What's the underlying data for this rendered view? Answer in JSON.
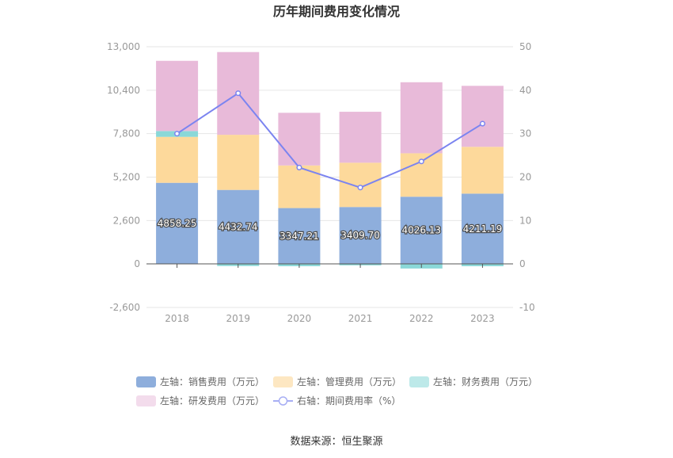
{
  "title": "历年期间费用变化情况",
  "source": "数据来源：恒生聚源",
  "colors": {
    "sales": "#8eaedc",
    "mgmt": "#fdd99b",
    "finance": "#8ad8d8",
    "rd": "#e8bad9",
    "rate": "#7b84f0"
  },
  "legend": [
    {
      "key": "sales",
      "label": "左轴：销售费用（万元）",
      "shape": "rect",
      "color": "#8eaedc"
    },
    {
      "key": "mgmt",
      "label": "左轴：管理费用（万元）",
      "shape": "rect",
      "color": "#fde7c2"
    },
    {
      "key": "finance",
      "label": "左轴：财务费用（万元）",
      "shape": "rect",
      "color": "#bde9e9"
    },
    {
      "key": "rd",
      "label": "左轴：研发费用（万元）",
      "shape": "rect",
      "color": "#f3dcec"
    },
    {
      "key": "rate",
      "label": "右轴：期间费用率（%）",
      "shape": "line",
      "color": "#a7aef4"
    }
  ],
  "chart_data": {
    "type": "bar",
    "stacked": true,
    "categories": [
      "2018",
      "2019",
      "2020",
      "2021",
      "2022",
      "2023"
    ],
    "left_axis": {
      "ylim": [
        -2600,
        13000
      ],
      "ticks": [
        -2600,
        0,
        2600,
        5200,
        7800,
        10400,
        13000
      ],
      "tick_labels": [
        "-2,600",
        "0",
        "2,600",
        "5,200",
        "7,800",
        "10,400",
        "13,000"
      ]
    },
    "right_axis": {
      "ylim": [
        -10,
        50
      ],
      "ticks": [
        -10,
        0,
        10,
        20,
        30,
        40,
        50
      ],
      "tick_labels": [
        "-10",
        "0",
        "10",
        "20",
        "30",
        "40",
        "50"
      ]
    },
    "grid": true,
    "legend_position": "bottom",
    "series": [
      {
        "name": "左轴：销售费用（万元）",
        "key": "sales",
        "axis": "left",
        "values": [
          4858.25,
          4432.74,
          3347.21,
          3409.7,
          4026.13,
          4211.19
        ],
        "data_labels": [
          "4858.25",
          "4432.74",
          "3347.21",
          "3409.70",
          "4026.13",
          "4211.19"
        ]
      },
      {
        "name": "左轴：管理费用（万元）",
        "key": "mgmt",
        "axis": "left",
        "values": [
          2750,
          3300,
          2550,
          2650,
          2600,
          2800
        ]
      },
      {
        "name": "左轴：财务费用（万元）",
        "key": "finance",
        "axis": "left",
        "values": [
          350,
          -120,
          -130,
          -80,
          -270,
          -130
        ]
      },
      {
        "name": "左轴：研发费用（万元）",
        "key": "rd",
        "axis": "left",
        "values": [
          4200,
          4950,
          3150,
          3050,
          4250,
          3650
        ]
      },
      {
        "name": "右轴：期间费用率（%）",
        "key": "rate",
        "axis": "right",
        "type": "line",
        "values": [
          30.0,
          39.3,
          22.2,
          17.6,
          23.6,
          32.3
        ]
      }
    ]
  }
}
